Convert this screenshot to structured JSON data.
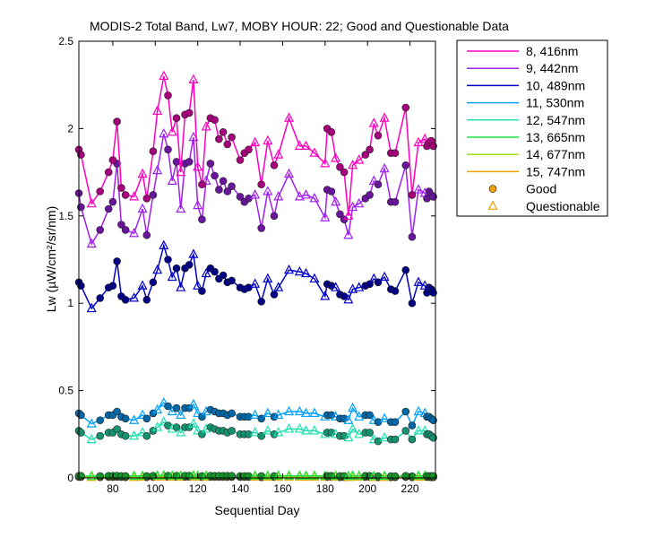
{
  "chart_data": {
    "type": "line",
    "title": "MODIS-2 Total Band,  Lw7, MOBY HOUR: 22;  Good and Questionable Data",
    "xlabel": "Sequential Day",
    "ylabel": "Lw (µW/cm²/sr/nm)",
    "xlim": [
      64,
      232
    ],
    "ylim": [
      0,
      2.5
    ],
    "xticks": [
      80,
      100,
      120,
      140,
      160,
      180,
      200,
      220
    ],
    "yticks": [
      0,
      0.5,
      1,
      1.5,
      2,
      2.5
    ],
    "ytick_labels": [
      "0",
      "0.5",
      "1",
      "1.5",
      "2",
      "2.5"
    ],
    "grid": false,
    "legend_position": "outside-right",
    "x": [
      64,
      65,
      70,
      74,
      78,
      80,
      82,
      84,
      86,
      90,
      94,
      96,
      99,
      101,
      104,
      106,
      108,
      110,
      112,
      114,
      116,
      118,
      120,
      122,
      124,
      126,
      128,
      130,
      132,
      134,
      136,
      140,
      142,
      144,
      147,
      150,
      153,
      156,
      158,
      163,
      168,
      171,
      175,
      180,
      181,
      183,
      185,
      187,
      189,
      191,
      193,
      196,
      199,
      201,
      203,
      205,
      208,
      211,
      213,
      218,
      221,
      224,
      227,
      228,
      229,
      230,
      231
    ],
    "markers": [
      "g",
      "g",
      "q",
      "g",
      "g",
      "g",
      "g",
      "g",
      "g",
      "q",
      "q",
      "g",
      "g",
      "q",
      "q",
      "g",
      "q",
      "g",
      "q",
      "g",
      "g",
      "q",
      "q",
      "g",
      "q",
      "g",
      "g",
      "g",
      "g",
      "g",
      "g",
      "g",
      "g",
      "g",
      "q",
      "g",
      "q",
      "g",
      "q",
      "q",
      "q",
      "q",
      "q",
      "q",
      "g",
      "g",
      "q",
      "g",
      "g",
      "q",
      "q",
      "q",
      "g",
      "g",
      "q",
      "g",
      "q",
      "g",
      "g",
      "g",
      "g",
      "q",
      "q",
      "g",
      "g",
      "g",
      "g"
    ],
    "series": [
      {
        "name": "8, 416nm",
        "color": "#ff00bf",
        "values": [
          1.88,
          1.85,
          1.57,
          1.64,
          1.75,
          1.82,
          2.04,
          1.66,
          1.62,
          1.61,
          1.74,
          1.6,
          1.87,
          2.1,
          2.3,
          2.19,
          1.98,
          2.06,
          1.75,
          2.08,
          2.09,
          2.28,
          1.78,
          1.68,
          2.01,
          2.06,
          2.05,
          1.94,
          1.98,
          1.91,
          1.95,
          1.82,
          1.86,
          1.88,
          1.92,
          1.68,
          1.93,
          1.79,
          1.85,
          2.06,
          1.9,
          1.9,
          1.86,
          1.8,
          2.0,
          1.98,
          1.83,
          1.78,
          1.75,
          1.5,
          1.79,
          1.82,
          1.85,
          1.88,
          2.03,
          1.96,
          2.06,
          1.86,
          1.86,
          2.12,
          1.62,
          1.92,
          1.94,
          1.9,
          1.92,
          1.93,
          1.9
        ]
      },
      {
        "name": "9, 442nm",
        "color": "#a020f0",
        "values": [
          1.63,
          1.55,
          1.34,
          1.42,
          1.54,
          1.58,
          1.8,
          1.45,
          1.42,
          1.4,
          1.54,
          1.39,
          1.62,
          1.76,
          1.97,
          1.88,
          1.7,
          1.81,
          1.54,
          1.8,
          1.81,
          1.95,
          1.56,
          1.48,
          1.7,
          1.8,
          1.73,
          1.65,
          1.7,
          1.64,
          1.67,
          1.61,
          1.58,
          1.6,
          1.62,
          1.43,
          1.64,
          1.5,
          1.61,
          1.74,
          1.61,
          1.62,
          1.6,
          1.49,
          1.65,
          1.64,
          1.58,
          1.51,
          1.48,
          1.39,
          1.55,
          1.57,
          1.6,
          1.62,
          1.7,
          1.68,
          1.77,
          1.58,
          1.58,
          1.79,
          1.38,
          1.65,
          1.63,
          1.6,
          1.64,
          1.62,
          1.61
        ]
      },
      {
        "name": "10, 489nm",
        "color": "#0000c8",
        "values": [
          1.12,
          1.1,
          0.97,
          1.03,
          1.09,
          1.1,
          1.24,
          1.04,
          1.02,
          1.03,
          1.1,
          1.02,
          1.12,
          1.19,
          1.33,
          1.25,
          1.15,
          1.2,
          1.09,
          1.2,
          1.22,
          1.28,
          1.1,
          1.07,
          1.17,
          1.2,
          1.18,
          1.14,
          1.16,
          1.12,
          1.13,
          1.09,
          1.08,
          1.09,
          1.11,
          1.01,
          1.14,
          1.05,
          1.09,
          1.19,
          1.18,
          1.17,
          1.14,
          1.04,
          1.11,
          1.1,
          1.09,
          1.05,
          1.04,
          1.02,
          1.08,
          1.09,
          1.1,
          1.11,
          1.14,
          1.12,
          1.15,
          1.08,
          1.07,
          1.19,
          1.0,
          1.12,
          1.1,
          1.06,
          1.09,
          1.08,
          1.06
        ]
      },
      {
        "name": "11, 530nm",
        "color": "#00a0ff",
        "values": [
          0.37,
          0.36,
          0.31,
          0.33,
          0.36,
          0.36,
          0.38,
          0.35,
          0.34,
          0.33,
          0.36,
          0.34,
          0.37,
          0.39,
          0.43,
          0.41,
          0.38,
          0.4,
          0.36,
          0.4,
          0.4,
          0.42,
          0.37,
          0.35,
          0.38,
          0.39,
          0.38,
          0.37,
          0.37,
          0.36,
          0.37,
          0.35,
          0.35,
          0.35,
          0.36,
          0.34,
          0.37,
          0.35,
          0.36,
          0.38,
          0.38,
          0.37,
          0.37,
          0.35,
          0.36,
          0.36,
          0.35,
          0.34,
          0.34,
          0.33,
          0.4,
          0.35,
          0.36,
          0.36,
          0.33,
          0.32,
          0.34,
          0.32,
          0.32,
          0.38,
          0.3,
          0.38,
          0.37,
          0.35,
          0.35,
          0.34,
          0.33
        ]
      },
      {
        "name": "12, 547nm",
        "color": "#20e0b0",
        "values": [
          0.27,
          0.26,
          0.22,
          0.24,
          0.26,
          0.26,
          0.28,
          0.25,
          0.24,
          0.24,
          0.26,
          0.24,
          0.27,
          0.29,
          0.32,
          0.3,
          0.28,
          0.29,
          0.26,
          0.29,
          0.29,
          0.31,
          0.27,
          0.25,
          0.28,
          0.29,
          0.28,
          0.27,
          0.27,
          0.26,
          0.27,
          0.25,
          0.25,
          0.25,
          0.26,
          0.24,
          0.27,
          0.25,
          0.26,
          0.28,
          0.28,
          0.27,
          0.27,
          0.25,
          0.26,
          0.26,
          0.25,
          0.24,
          0.24,
          0.23,
          0.28,
          0.25,
          0.26,
          0.26,
          0.22,
          0.21,
          0.23,
          0.22,
          0.22,
          0.27,
          0.22,
          0.27,
          0.27,
          0.25,
          0.25,
          0.24,
          0.23
        ]
      },
      {
        "name": "13, 665nm",
        "color": "#20e040",
        "values": [
          0.012,
          0.012,
          0.01,
          0.011,
          0.012,
          0.012,
          0.013,
          0.011,
          0.011,
          0.011,
          0.012,
          0.011,
          0.012,
          0.013,
          0.014,
          0.013,
          0.012,
          0.013,
          0.012,
          0.013,
          0.013,
          0.014,
          0.012,
          0.011,
          0.012,
          0.013,
          0.012,
          0.012,
          0.012,
          0.012,
          0.012,
          0.011,
          0.011,
          0.011,
          0.012,
          0.011,
          0.012,
          0.011,
          0.012,
          0.012,
          0.012,
          0.012,
          0.012,
          0.011,
          0.012,
          0.012,
          0.011,
          0.011,
          0.011,
          0.01,
          0.013,
          0.011,
          0.012,
          0.012,
          0.01,
          0.01,
          0.011,
          0.01,
          0.01,
          0.012,
          0.01,
          0.012,
          0.012,
          0.011,
          0.011,
          0.011,
          0.011
        ]
      },
      {
        "name": "14, 677nm",
        "color": "#a0e020",
        "values": [
          0.01,
          0.01,
          0.008,
          0.009,
          0.01,
          0.01,
          0.011,
          0.009,
          0.009,
          0.009,
          0.01,
          0.009,
          0.01,
          0.011,
          0.012,
          0.011,
          0.01,
          0.011,
          0.01,
          0.011,
          0.011,
          0.012,
          0.01,
          0.009,
          0.01,
          0.011,
          0.01,
          0.01,
          0.01,
          0.01,
          0.01,
          0.009,
          0.009,
          0.009,
          0.01,
          0.009,
          0.01,
          0.009,
          0.01,
          0.01,
          0.01,
          0.01,
          0.01,
          0.009,
          0.01,
          0.01,
          0.009,
          0.009,
          0.009,
          0.008,
          0.011,
          0.009,
          0.01,
          0.01,
          0.008,
          0.008,
          0.009,
          0.008,
          0.008,
          0.01,
          0.008,
          0.01,
          0.01,
          0.009,
          0.009,
          0.009,
          0.009
        ]
      },
      {
        "name": "15, 747nm",
        "color": "#f0a000",
        "values": [
          0.005,
          0.005,
          0.004,
          0.004,
          0.005,
          0.005,
          0.006,
          0.005,
          0.004,
          0.004,
          0.005,
          0.004,
          0.005,
          0.006,
          0.007,
          0.006,
          0.005,
          0.006,
          0.005,
          0.006,
          0.006,
          0.007,
          0.005,
          0.005,
          0.005,
          0.006,
          0.005,
          0.005,
          0.005,
          0.005,
          0.005,
          0.005,
          0.005,
          0.005,
          0.005,
          0.004,
          0.005,
          0.005,
          0.005,
          0.005,
          0.005,
          0.005,
          0.005,
          0.005,
          0.005,
          0.005,
          0.005,
          0.004,
          0.004,
          0.004,
          0.006,
          0.005,
          0.005,
          0.005,
          0.004,
          0.004,
          0.004,
          0.004,
          0.004,
          0.005,
          0.004,
          0.005,
          0.005,
          0.005,
          0.005,
          0.004,
          0.004
        ]
      }
    ],
    "marker_legend": [
      {
        "label": "Good",
        "marker": "circle",
        "color": "#f0a000"
      },
      {
        "label": "Questionable",
        "marker": "triangle",
        "color": "#f0a000"
      }
    ]
  }
}
